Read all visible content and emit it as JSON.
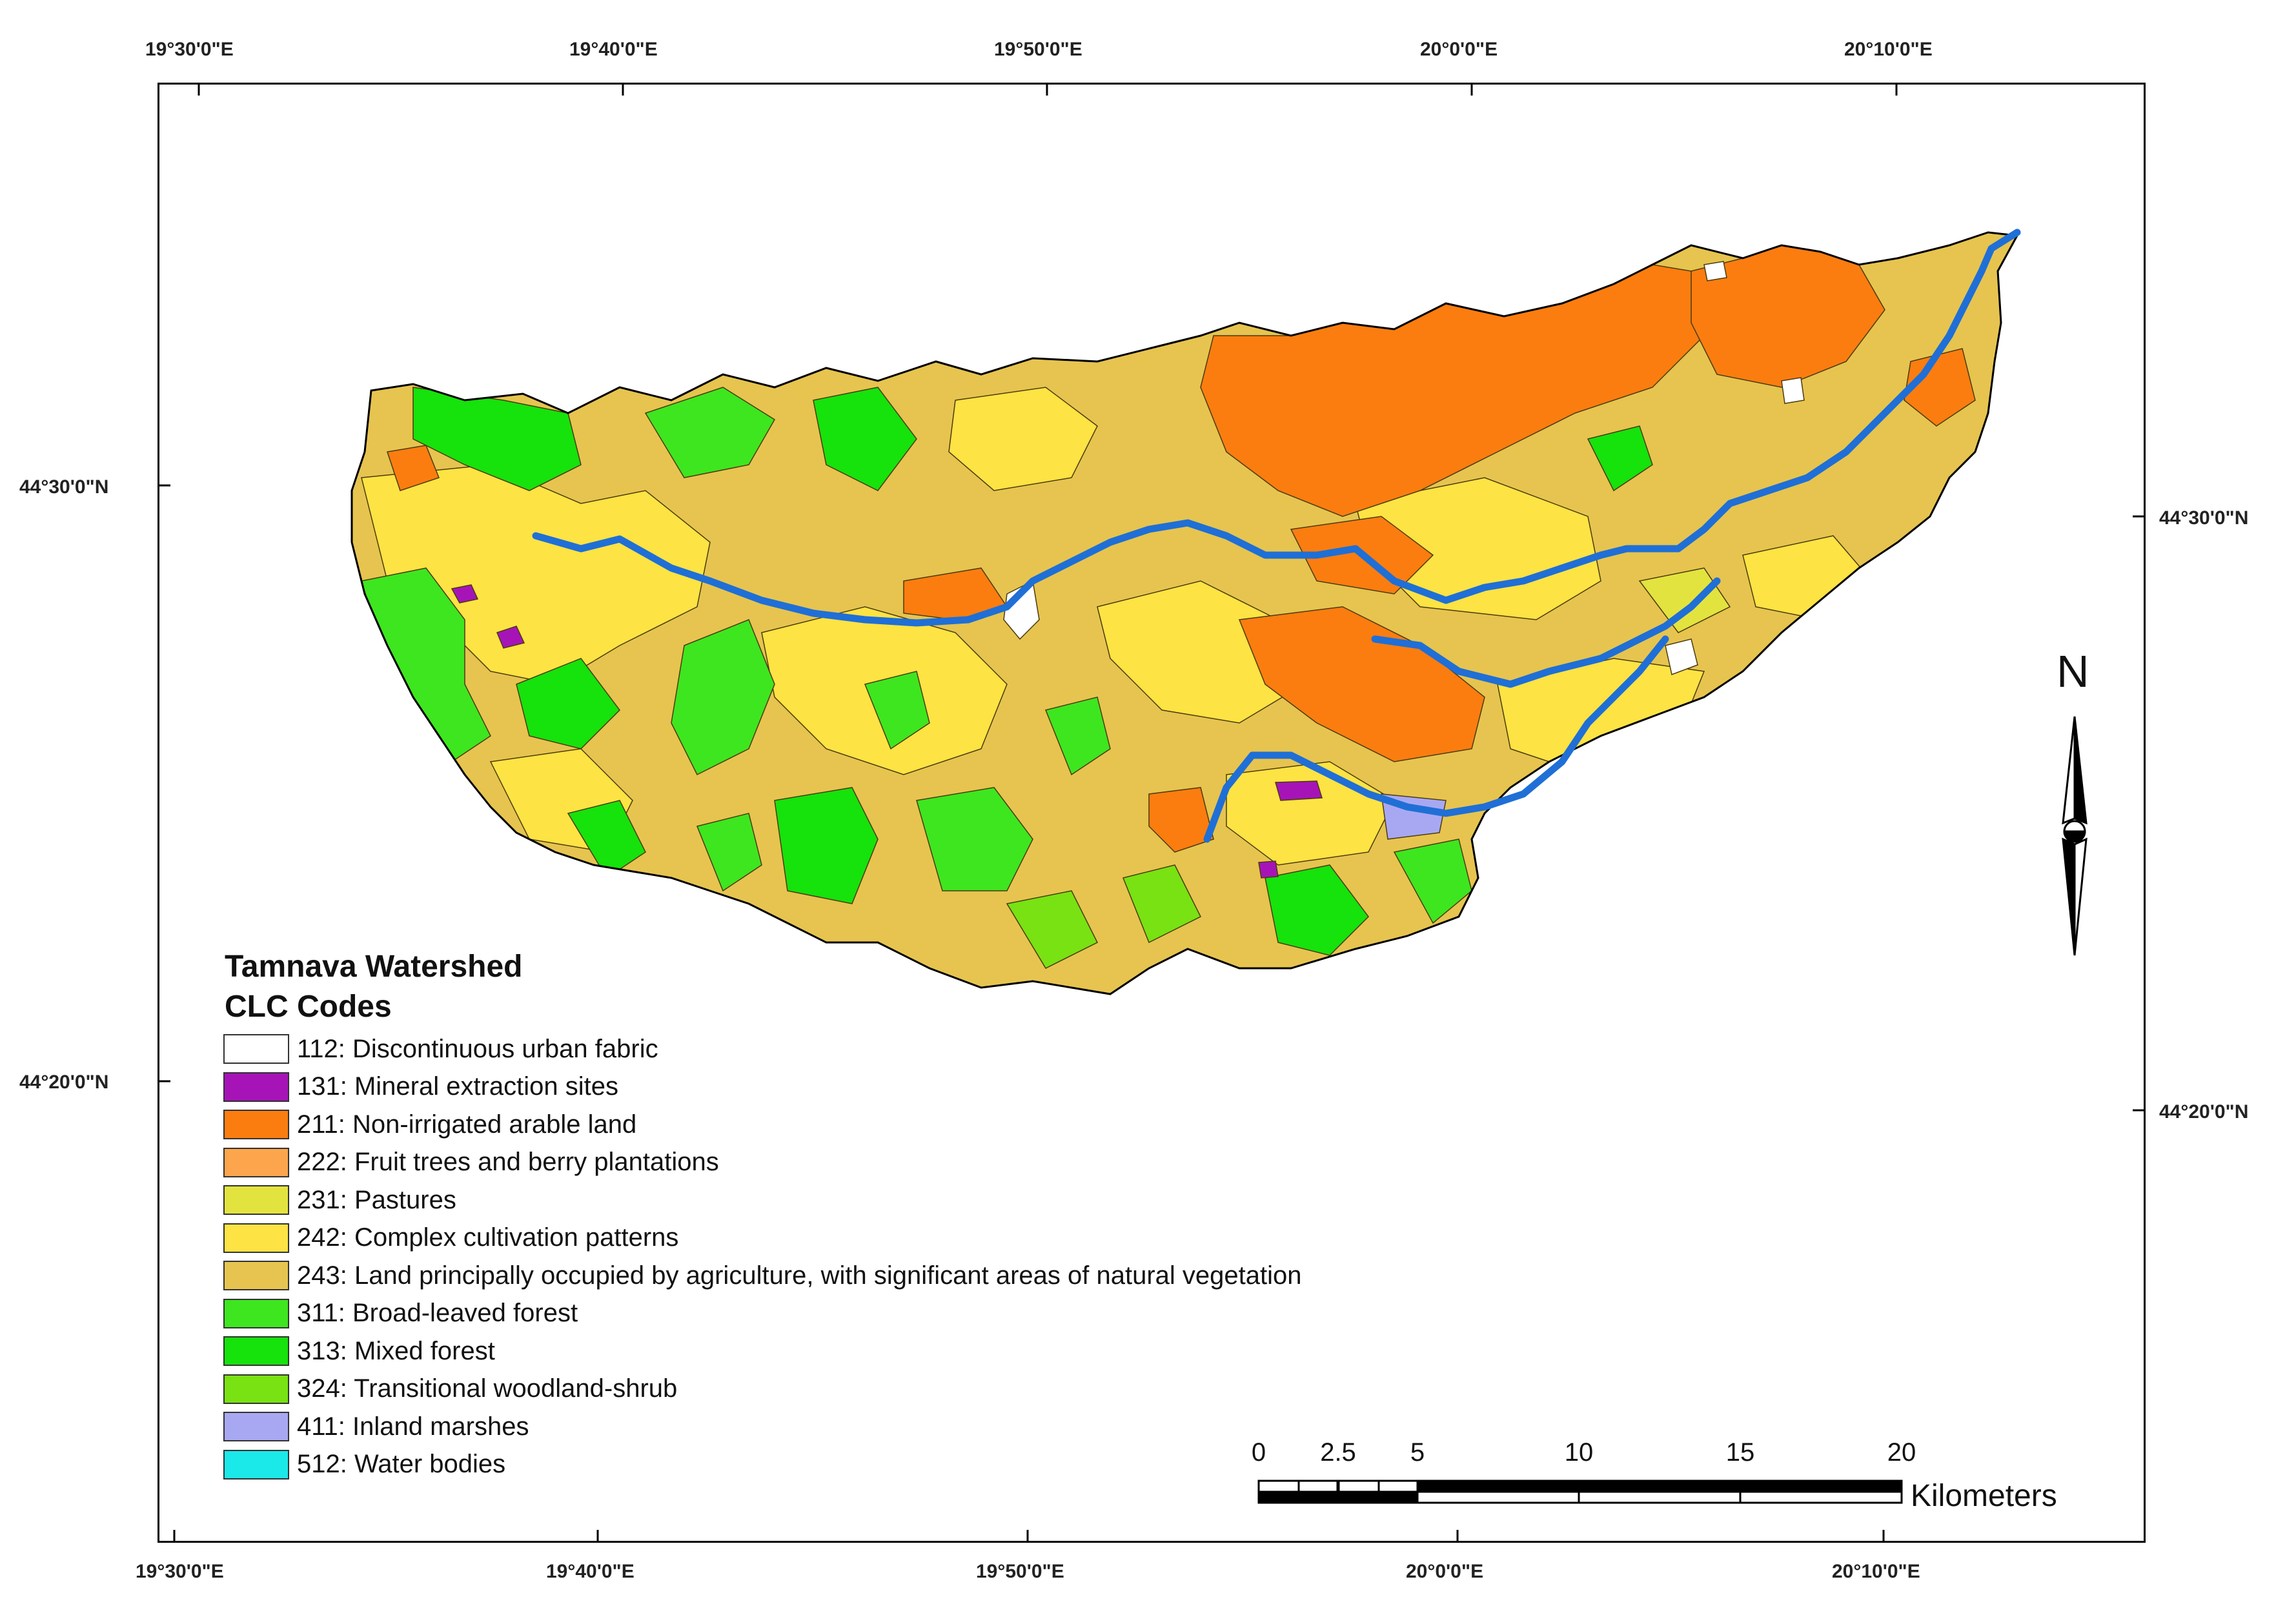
{
  "map": {
    "top_longitudes": [
      "19°30'0\"E",
      "19°40'0\"E",
      "19°50'0\"E",
      "20°0'0\"E",
      "20°10'0\"E"
    ],
    "bottom_longitudes": [
      "19°30'0\"E",
      "19°40'0\"E",
      "19°50'0\"E",
      "20°0'0\"E",
      "20°10'0\"E"
    ],
    "left_latitudes": [
      "44°30'0\"N",
      "44°20'0\"N"
    ],
    "right_latitudes": [
      "44°30'0\"N",
      "44°20'0\"N"
    ],
    "river_color": "#1f6fd6",
    "boundary_color": "#000000"
  },
  "legend": {
    "title_line1": "Tamnava Watershed",
    "title_line2": "CLC Codes",
    "items": [
      {
        "label": "112: Discontinuous urban fabric",
        "color": "#ffffff"
      },
      {
        "label": "131: Mineral extraction sites",
        "color": "#a614b8"
      },
      {
        "label": "211: Non-irrigated arable land",
        "color": "#fb7d10"
      },
      {
        "label": "222: Fruit trees and berry plantations",
        "color": "#fca54c"
      },
      {
        "label": "231: Pastures",
        "color": "#e3e33f"
      },
      {
        "label": "242: Complex cultivation patterns",
        "color": "#fde343"
      },
      {
        "label": "243: Land principally occupied by agriculture, with significant areas of natural vegetation",
        "color": "#e6c44f"
      },
      {
        "label": "311: Broad-leaved forest",
        "color": "#3ee61f"
      },
      {
        "label": "313: Mixed forest",
        "color": "#16e20c"
      },
      {
        "label": "324: Transitional woodland-shrub",
        "color": "#78e212"
      },
      {
        "label": "411: Inland marshes",
        "color": "#a8a8f2"
      },
      {
        "label": "512: Water bodies",
        "color": "#1be8e8"
      }
    ]
  },
  "scale_bar": {
    "ticks": [
      "0",
      "2.5",
      "5",
      "10",
      "15",
      "20"
    ],
    "unit": "Kilometers"
  },
  "north_arrow": {
    "letter": "N"
  }
}
